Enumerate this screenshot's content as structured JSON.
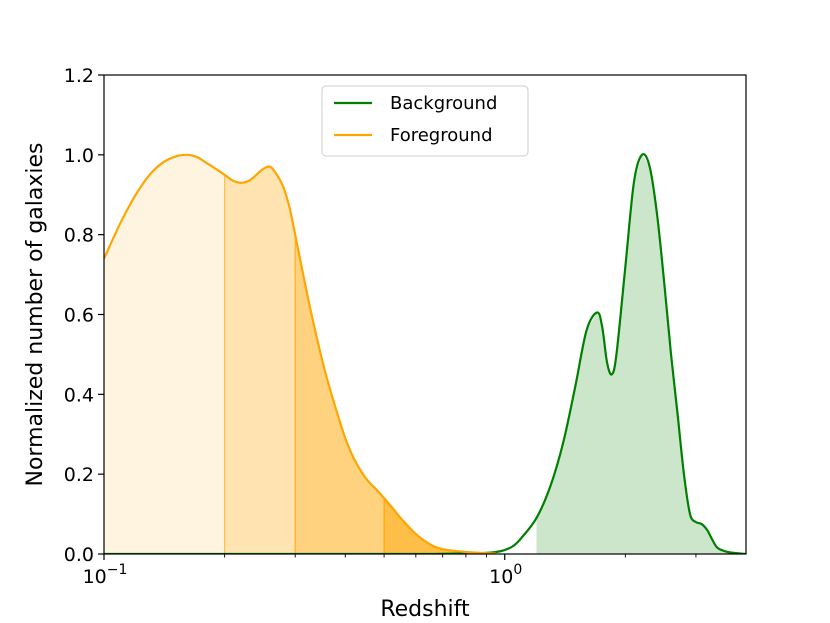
{
  "chart_data": {
    "type": "area",
    "xlabel": "Redshift",
    "ylabel": "Normalized number of galaxies",
    "xscale": "log",
    "xlim": [
      0.1,
      4.0
    ],
    "ylim": [
      0,
      1.2
    ],
    "grid": false,
    "legend": {
      "placement": "top-center"
    },
    "y_ticks": [
      {
        "value": 0.0,
        "label": "0.0"
      },
      {
        "value": 0.2,
        "label": "0.2"
      },
      {
        "value": 0.4,
        "label": "0.4"
      },
      {
        "value": 0.6,
        "label": "0.6"
      },
      {
        "value": 0.8,
        "label": "0.8"
      },
      {
        "value": 1.0,
        "label": "1.0"
      },
      {
        "value": 1.2,
        "label": "1.2"
      }
    ],
    "x_ticks": [
      {
        "value": 0.1,
        "base": "10",
        "exp": "−1"
      },
      {
        "value": 1.0,
        "base": "10",
        "exp": "0"
      }
    ],
    "series": [
      {
        "name": "Background",
        "color": "#008000",
        "fill_color": "#008000",
        "fill_opacity": 0.2,
        "fill_from_x": 1.2,
        "x": [
          0.1,
          0.3,
          0.6,
          0.85,
          0.95,
          1.0,
          1.05,
          1.1,
          1.2,
          1.3,
          1.4,
          1.5,
          1.6,
          1.7,
          1.75,
          1.8,
          1.85,
          1.9,
          2.0,
          2.1,
          2.2,
          2.3,
          2.4,
          2.5,
          2.6,
          2.7,
          2.8,
          2.9,
          3.0,
          3.1,
          3.2,
          3.3,
          3.4,
          3.6,
          3.8,
          4.0
        ],
        "y": [
          0.0,
          0.0,
          0.0,
          0.002,
          0.005,
          0.01,
          0.02,
          0.04,
          0.09,
          0.17,
          0.28,
          0.42,
          0.56,
          0.605,
          0.57,
          0.48,
          0.45,
          0.5,
          0.72,
          0.93,
          1.0,
          0.97,
          0.85,
          0.68,
          0.5,
          0.35,
          0.2,
          0.1,
          0.08,
          0.075,
          0.06,
          0.035,
          0.015,
          0.005,
          0.002,
          0.0
        ]
      },
      {
        "name": "Foreground",
        "color": "#ffa500",
        "fill_color": "#ffa500",
        "fill_bands": [
          {
            "from": 0.1,
            "to": 0.2,
            "opacity": 0.12
          },
          {
            "from": 0.2,
            "to": 0.3,
            "opacity": 0.3
          },
          {
            "from": 0.3,
            "to": 0.5,
            "opacity": 0.5
          },
          {
            "from": 0.5,
            "to": 0.95,
            "opacity": 0.72
          }
        ],
        "x": [
          0.1,
          0.11,
          0.12,
          0.13,
          0.14,
          0.15,
          0.16,
          0.17,
          0.18,
          0.19,
          0.2,
          0.21,
          0.22,
          0.23,
          0.24,
          0.25,
          0.26,
          0.27,
          0.28,
          0.29,
          0.3,
          0.32,
          0.34,
          0.36,
          0.38,
          0.4,
          0.42,
          0.45,
          0.48,
          0.5,
          0.52,
          0.55,
          0.6,
          0.65,
          0.7,
          0.8,
          0.9,
          0.95
        ],
        "y": [
          0.74,
          0.83,
          0.9,
          0.95,
          0.98,
          0.995,
          1.0,
          0.995,
          0.98,
          0.965,
          0.95,
          0.935,
          0.93,
          0.935,
          0.95,
          0.965,
          0.97,
          0.95,
          0.92,
          0.87,
          0.8,
          0.66,
          0.54,
          0.44,
          0.36,
          0.29,
          0.24,
          0.19,
          0.16,
          0.14,
          0.12,
          0.09,
          0.05,
          0.025,
          0.012,
          0.005,
          0.002,
          0.001
        ]
      }
    ]
  }
}
